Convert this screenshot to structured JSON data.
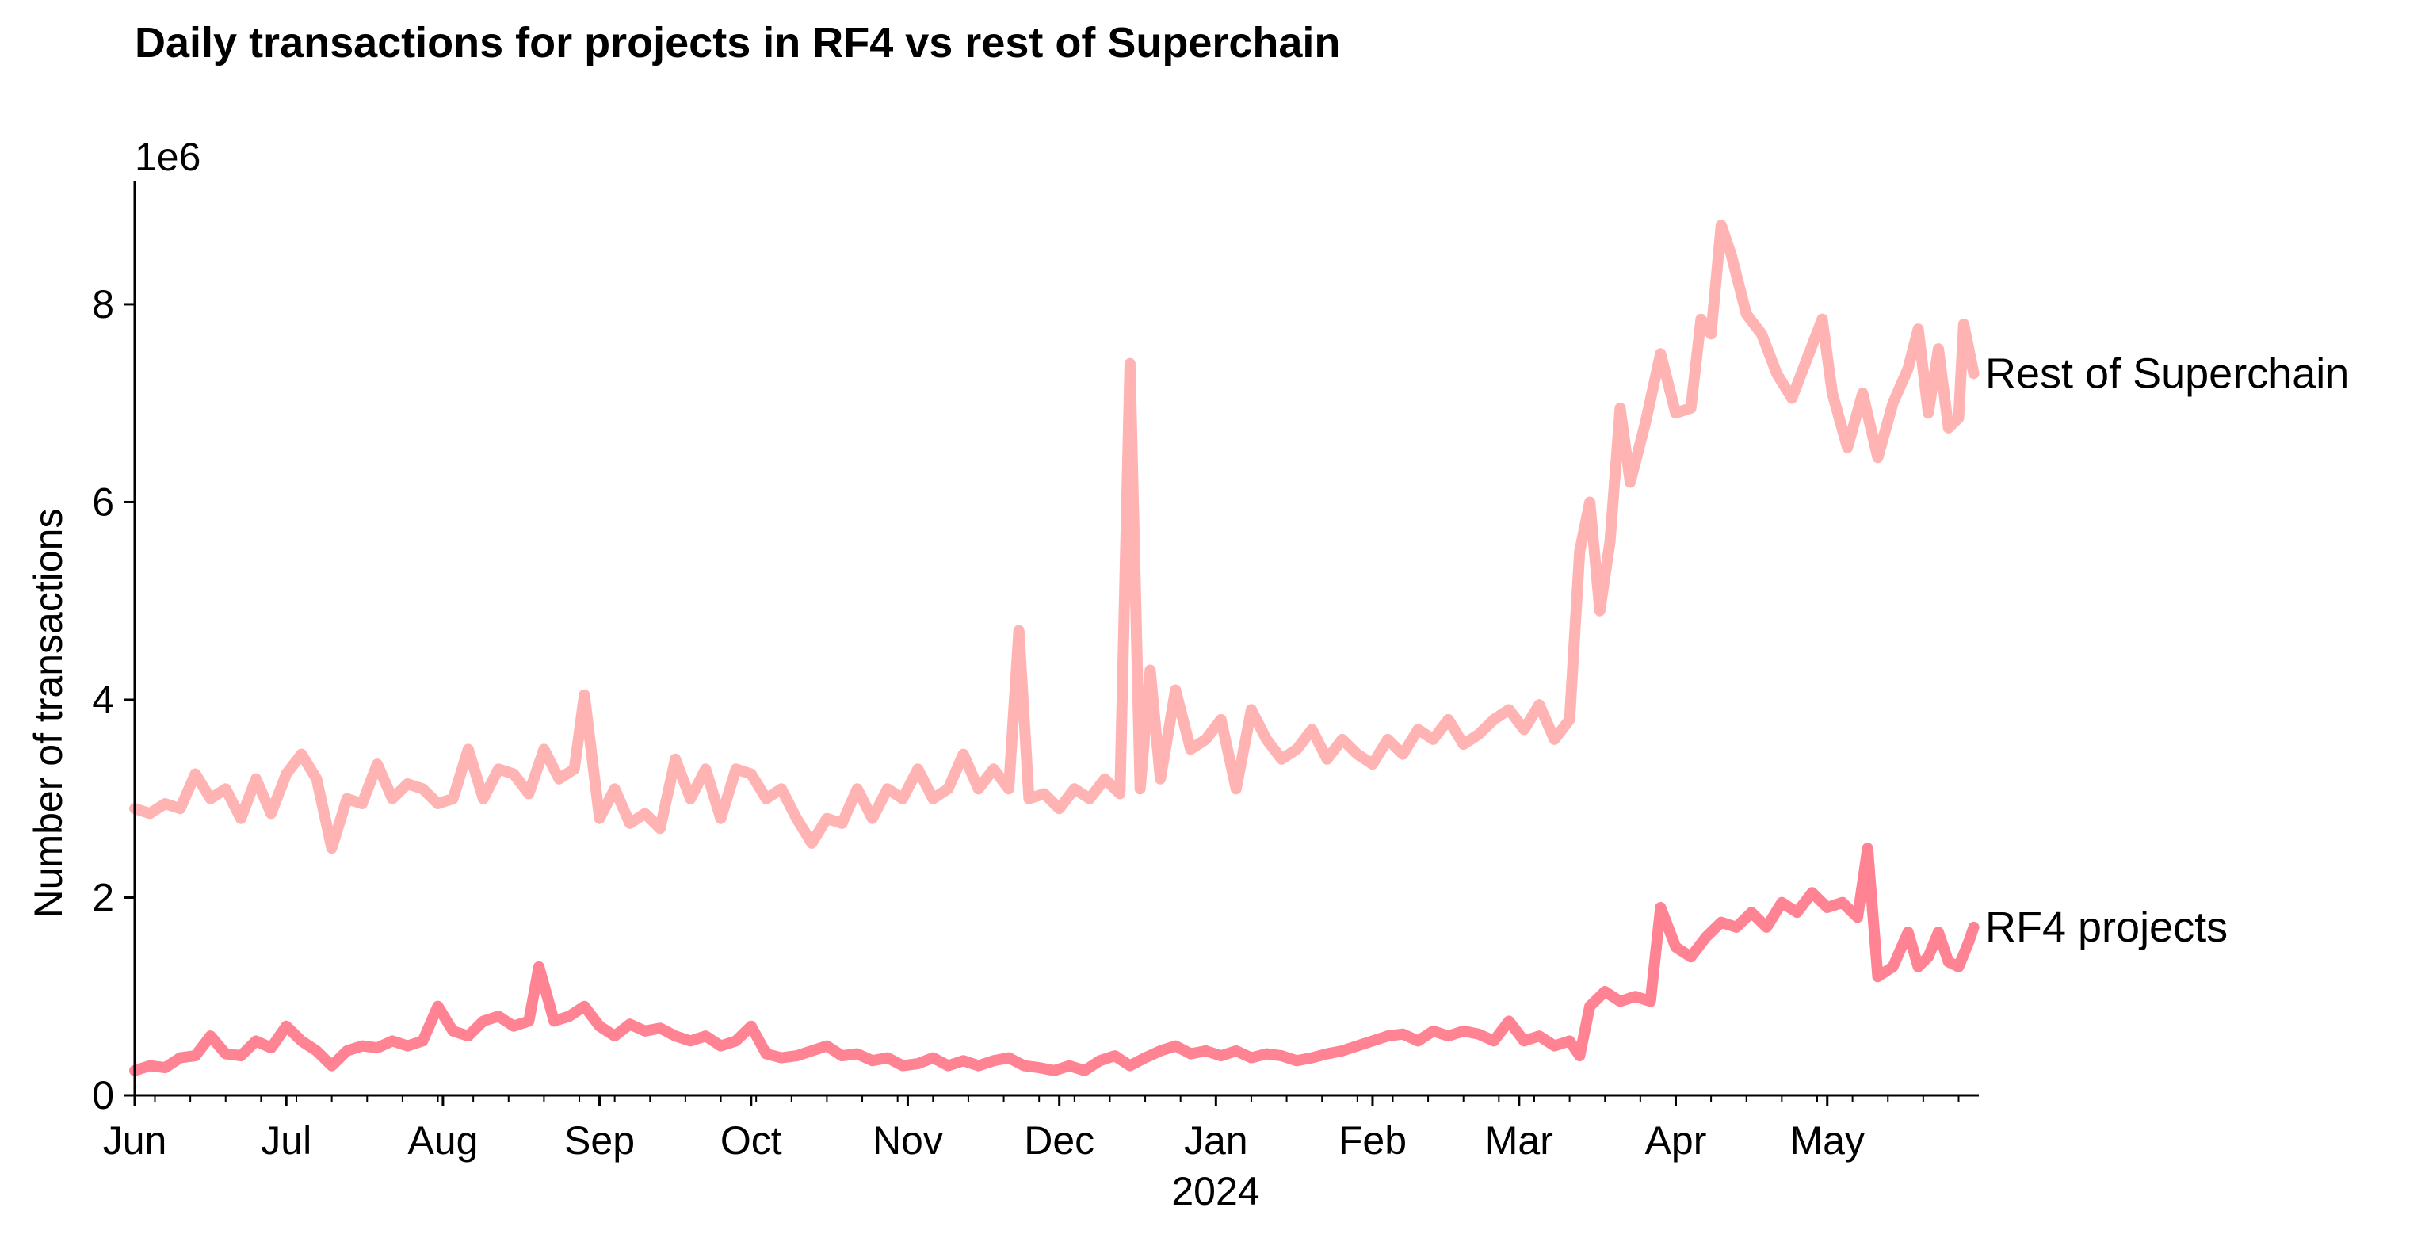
{
  "chart_data": {
    "type": "line",
    "title": "Daily transactions for projects in RF4 vs rest of Superchain",
    "ylabel": "Number of transactions",
    "y_offset_label": "1e6",
    "year_label": "2024",
    "xlim": [
      "2023-06-01",
      "2024-05-31"
    ],
    "ylim": [
      0,
      9.25
    ],
    "y_ticks": [
      0,
      2,
      4,
      6,
      8
    ],
    "x_ticks": [
      {
        "date": "2023-06-01",
        "label": "Jun"
      },
      {
        "date": "2023-07-01",
        "label": "Jul"
      },
      {
        "date": "2023-08-01",
        "label": "Aug"
      },
      {
        "date": "2023-09-01",
        "label": "Sep"
      },
      {
        "date": "2023-10-01",
        "label": "Oct"
      },
      {
        "date": "2023-11-01",
        "label": "Nov"
      },
      {
        "date": "2023-12-01",
        "label": "Dec"
      },
      {
        "date": "2024-01-01",
        "label": "Jan"
      },
      {
        "date": "2024-02-01",
        "label": "Feb"
      },
      {
        "date": "2024-03-01",
        "label": "Mar"
      },
      {
        "date": "2024-04-01",
        "label": "Apr"
      },
      {
        "date": "2024-05-01",
        "label": "May"
      }
    ],
    "grid": false,
    "legend": "none",
    "series": [
      {
        "name": "Rest of Superchain",
        "color": "#ffb3b3",
        "points": [
          [
            "2023-06-01",
            2.9
          ],
          [
            "2023-06-04",
            2.85
          ],
          [
            "2023-06-07",
            2.95
          ],
          [
            "2023-06-10",
            2.9
          ],
          [
            "2023-06-13",
            3.25
          ],
          [
            "2023-06-16",
            3.0
          ],
          [
            "2023-06-19",
            3.1
          ],
          [
            "2023-06-22",
            2.8
          ],
          [
            "2023-06-25",
            3.2
          ],
          [
            "2023-06-28",
            2.85
          ],
          [
            "2023-07-01",
            3.25
          ],
          [
            "2023-07-04",
            3.45
          ],
          [
            "2023-07-07",
            3.2
          ],
          [
            "2023-07-10",
            2.5
          ],
          [
            "2023-07-13",
            3.0
          ],
          [
            "2023-07-16",
            2.95
          ],
          [
            "2023-07-19",
            3.35
          ],
          [
            "2023-07-22",
            3.0
          ],
          [
            "2023-07-25",
            3.15
          ],
          [
            "2023-07-28",
            3.1
          ],
          [
            "2023-07-31",
            2.95
          ],
          [
            "2023-08-03",
            3.0
          ],
          [
            "2023-08-06",
            3.5
          ],
          [
            "2023-08-09",
            3.0
          ],
          [
            "2023-08-12",
            3.3
          ],
          [
            "2023-08-15",
            3.25
          ],
          [
            "2023-08-18",
            3.05
          ],
          [
            "2023-08-21",
            3.5
          ],
          [
            "2023-08-24",
            3.2
          ],
          [
            "2023-08-27",
            3.3
          ],
          [
            "2023-08-29",
            4.05
          ],
          [
            "2023-09-01",
            2.8
          ],
          [
            "2023-09-04",
            3.1
          ],
          [
            "2023-09-07",
            2.75
          ],
          [
            "2023-09-10",
            2.85
          ],
          [
            "2023-09-13",
            2.7
          ],
          [
            "2023-09-16",
            3.4
          ],
          [
            "2023-09-19",
            3.0
          ],
          [
            "2023-09-22",
            3.3
          ],
          [
            "2023-09-25",
            2.8
          ],
          [
            "2023-09-28",
            3.3
          ],
          [
            "2023-10-01",
            3.25
          ],
          [
            "2023-10-04",
            3.0
          ],
          [
            "2023-10-07",
            3.1
          ],
          [
            "2023-10-10",
            2.8
          ],
          [
            "2023-10-13",
            2.55
          ],
          [
            "2023-10-16",
            2.8
          ],
          [
            "2023-10-19",
            2.75
          ],
          [
            "2023-10-22",
            3.1
          ],
          [
            "2023-10-25",
            2.8
          ],
          [
            "2023-10-28",
            3.1
          ],
          [
            "2023-10-31",
            3.0
          ],
          [
            "2023-11-03",
            3.3
          ],
          [
            "2023-11-06",
            3.0
          ],
          [
            "2023-11-09",
            3.1
          ],
          [
            "2023-11-12",
            3.45
          ],
          [
            "2023-11-15",
            3.1
          ],
          [
            "2023-11-18",
            3.3
          ],
          [
            "2023-11-21",
            3.1
          ],
          [
            "2023-11-23",
            4.7
          ],
          [
            "2023-11-25",
            3.0
          ],
          [
            "2023-11-28",
            3.05
          ],
          [
            "2023-12-01",
            2.9
          ],
          [
            "2023-12-04",
            3.1
          ],
          [
            "2023-12-07",
            3.0
          ],
          [
            "2023-12-10",
            3.2
          ],
          [
            "2023-12-13",
            3.05
          ],
          [
            "2023-12-15",
            7.4
          ],
          [
            "2023-12-17",
            3.1
          ],
          [
            "2023-12-19",
            4.3
          ],
          [
            "2023-12-21",
            3.2
          ],
          [
            "2023-12-24",
            4.1
          ],
          [
            "2023-12-27",
            3.5
          ],
          [
            "2023-12-30",
            3.6
          ],
          [
            "2024-01-02",
            3.8
          ],
          [
            "2024-01-05",
            3.1
          ],
          [
            "2024-01-08",
            3.9
          ],
          [
            "2024-01-11",
            3.6
          ],
          [
            "2024-01-14",
            3.4
          ],
          [
            "2024-01-17",
            3.5
          ],
          [
            "2024-01-20",
            3.7
          ],
          [
            "2024-01-23",
            3.4
          ],
          [
            "2024-01-26",
            3.6
          ],
          [
            "2024-01-29",
            3.45
          ],
          [
            "2024-02-01",
            3.35
          ],
          [
            "2024-02-04",
            3.6
          ],
          [
            "2024-02-07",
            3.45
          ],
          [
            "2024-02-10",
            3.7
          ],
          [
            "2024-02-13",
            3.6
          ],
          [
            "2024-02-16",
            3.8
          ],
          [
            "2024-02-19",
            3.55
          ],
          [
            "2024-02-22",
            3.65
          ],
          [
            "2024-02-25",
            3.8
          ],
          [
            "2024-02-28",
            3.9
          ],
          [
            "2024-03-02",
            3.7
          ],
          [
            "2024-03-05",
            3.95
          ],
          [
            "2024-03-08",
            3.6
          ],
          [
            "2024-03-11",
            3.8
          ],
          [
            "2024-03-13",
            5.5
          ],
          [
            "2024-03-15",
            6.0
          ],
          [
            "2024-03-17",
            4.9
          ],
          [
            "2024-03-19",
            5.6
          ],
          [
            "2024-03-21",
            6.95
          ],
          [
            "2024-03-23",
            6.2
          ],
          [
            "2024-03-26",
            6.8
          ],
          [
            "2024-03-29",
            7.5
          ],
          [
            "2024-04-01",
            6.9
          ],
          [
            "2024-04-04",
            6.95
          ],
          [
            "2024-04-06",
            7.85
          ],
          [
            "2024-04-08",
            7.7
          ],
          [
            "2024-04-10",
            8.8
          ],
          [
            "2024-04-12",
            8.5
          ],
          [
            "2024-04-15",
            7.9
          ],
          [
            "2024-04-18",
            7.7
          ],
          [
            "2024-04-21",
            7.3
          ],
          [
            "2024-04-24",
            7.05
          ],
          [
            "2024-04-27",
            7.45
          ],
          [
            "2024-04-30",
            7.85
          ],
          [
            "2024-05-02",
            7.1
          ],
          [
            "2024-05-05",
            6.55
          ],
          [
            "2024-05-08",
            7.1
          ],
          [
            "2024-05-11",
            6.45
          ],
          [
            "2024-05-14",
            7.0
          ],
          [
            "2024-05-17",
            7.35
          ],
          [
            "2024-05-19",
            7.75
          ],
          [
            "2024-05-21",
            6.9
          ],
          [
            "2024-05-23",
            7.55
          ],
          [
            "2024-05-25",
            6.75
          ],
          [
            "2024-05-27",
            6.85
          ],
          [
            "2024-05-28",
            7.8
          ],
          [
            "2024-05-30",
            7.3
          ]
        ]
      },
      {
        "name": "RF4 projects",
        "color": "#ff8392",
        "points": [
          [
            "2023-06-01",
            0.25
          ],
          [
            "2023-06-04",
            0.3
          ],
          [
            "2023-06-07",
            0.28
          ],
          [
            "2023-06-10",
            0.38
          ],
          [
            "2023-06-13",
            0.4
          ],
          [
            "2023-06-16",
            0.6
          ],
          [
            "2023-06-19",
            0.42
          ],
          [
            "2023-06-22",
            0.4
          ],
          [
            "2023-06-25",
            0.55
          ],
          [
            "2023-06-28",
            0.48
          ],
          [
            "2023-07-01",
            0.7
          ],
          [
            "2023-07-04",
            0.55
          ],
          [
            "2023-07-07",
            0.45
          ],
          [
            "2023-07-10",
            0.3
          ],
          [
            "2023-07-13",
            0.45
          ],
          [
            "2023-07-16",
            0.5
          ],
          [
            "2023-07-19",
            0.48
          ],
          [
            "2023-07-22",
            0.55
          ],
          [
            "2023-07-25",
            0.5
          ],
          [
            "2023-07-28",
            0.55
          ],
          [
            "2023-07-31",
            0.9
          ],
          [
            "2023-08-03",
            0.65
          ],
          [
            "2023-08-06",
            0.6
          ],
          [
            "2023-08-09",
            0.75
          ],
          [
            "2023-08-12",
            0.8
          ],
          [
            "2023-08-15",
            0.7
          ],
          [
            "2023-08-18",
            0.75
          ],
          [
            "2023-08-20",
            1.3
          ],
          [
            "2023-08-23",
            0.75
          ],
          [
            "2023-08-26",
            0.8
          ],
          [
            "2023-08-29",
            0.9
          ],
          [
            "2023-09-01",
            0.7
          ],
          [
            "2023-09-04",
            0.6
          ],
          [
            "2023-09-07",
            0.72
          ],
          [
            "2023-09-10",
            0.65
          ],
          [
            "2023-09-13",
            0.68
          ],
          [
            "2023-09-16",
            0.6
          ],
          [
            "2023-09-19",
            0.55
          ],
          [
            "2023-09-22",
            0.6
          ],
          [
            "2023-09-25",
            0.5
          ],
          [
            "2023-09-28",
            0.55
          ],
          [
            "2023-10-01",
            0.7
          ],
          [
            "2023-10-04",
            0.42
          ],
          [
            "2023-10-07",
            0.38
          ],
          [
            "2023-10-10",
            0.4
          ],
          [
            "2023-10-13",
            0.45
          ],
          [
            "2023-10-16",
            0.5
          ],
          [
            "2023-10-19",
            0.4
          ],
          [
            "2023-10-22",
            0.42
          ],
          [
            "2023-10-25",
            0.35
          ],
          [
            "2023-10-28",
            0.38
          ],
          [
            "2023-10-31",
            0.3
          ],
          [
            "2023-11-03",
            0.32
          ],
          [
            "2023-11-06",
            0.38
          ],
          [
            "2023-11-09",
            0.3
          ],
          [
            "2023-11-12",
            0.35
          ],
          [
            "2023-11-15",
            0.3
          ],
          [
            "2023-11-18",
            0.35
          ],
          [
            "2023-11-21",
            0.38
          ],
          [
            "2023-11-24",
            0.3
          ],
          [
            "2023-11-27",
            0.28
          ],
          [
            "2023-11-30",
            0.25
          ],
          [
            "2023-12-03",
            0.3
          ],
          [
            "2023-12-06",
            0.25
          ],
          [
            "2023-12-09",
            0.35
          ],
          [
            "2023-12-12",
            0.4
          ],
          [
            "2023-12-15",
            0.3
          ],
          [
            "2023-12-18",
            0.38
          ],
          [
            "2023-12-21",
            0.45
          ],
          [
            "2023-12-24",
            0.5
          ],
          [
            "2023-12-27",
            0.42
          ],
          [
            "2023-12-30",
            0.45
          ],
          [
            "2024-01-02",
            0.4
          ],
          [
            "2024-01-05",
            0.45
          ],
          [
            "2024-01-08",
            0.38
          ],
          [
            "2024-01-11",
            0.42
          ],
          [
            "2024-01-14",
            0.4
          ],
          [
            "2024-01-17",
            0.35
          ],
          [
            "2024-01-20",
            0.38
          ],
          [
            "2024-01-23",
            0.42
          ],
          [
            "2024-01-26",
            0.45
          ],
          [
            "2024-01-29",
            0.5
          ],
          [
            "2024-02-01",
            0.55
          ],
          [
            "2024-02-04",
            0.6
          ],
          [
            "2024-02-07",
            0.62
          ],
          [
            "2024-02-10",
            0.55
          ],
          [
            "2024-02-13",
            0.65
          ],
          [
            "2024-02-16",
            0.6
          ],
          [
            "2024-02-19",
            0.65
          ],
          [
            "2024-02-22",
            0.62
          ],
          [
            "2024-02-25",
            0.55
          ],
          [
            "2024-02-28",
            0.75
          ],
          [
            "2024-03-02",
            0.55
          ],
          [
            "2024-03-05",
            0.6
          ],
          [
            "2024-03-08",
            0.5
          ],
          [
            "2024-03-11",
            0.55
          ],
          [
            "2024-03-13",
            0.4
          ],
          [
            "2024-03-15",
            0.9
          ],
          [
            "2024-03-18",
            1.05
          ],
          [
            "2024-03-21",
            0.95
          ],
          [
            "2024-03-24",
            1.0
          ],
          [
            "2024-03-27",
            0.95
          ],
          [
            "2024-03-29",
            1.9
          ],
          [
            "2024-04-01",
            1.5
          ],
          [
            "2024-04-04",
            1.4
          ],
          [
            "2024-04-07",
            1.6
          ],
          [
            "2024-04-10",
            1.75
          ],
          [
            "2024-04-13",
            1.7
          ],
          [
            "2024-04-16",
            1.85
          ],
          [
            "2024-04-19",
            1.7
          ],
          [
            "2024-04-22",
            1.95
          ],
          [
            "2024-04-25",
            1.85
          ],
          [
            "2024-04-28",
            2.05
          ],
          [
            "2024-05-01",
            1.9
          ],
          [
            "2024-05-04",
            1.95
          ],
          [
            "2024-05-07",
            1.8
          ],
          [
            "2024-05-09",
            2.5
          ],
          [
            "2024-05-11",
            1.2
          ],
          [
            "2024-05-14",
            1.3
          ],
          [
            "2024-05-17",
            1.65
          ],
          [
            "2024-05-19",
            1.3
          ],
          [
            "2024-05-21",
            1.4
          ],
          [
            "2024-05-23",
            1.65
          ],
          [
            "2024-05-25",
            1.35
          ],
          [
            "2024-05-27",
            1.3
          ],
          [
            "2024-05-29",
            1.55
          ],
          [
            "2024-05-30",
            1.7
          ]
        ]
      }
    ]
  }
}
